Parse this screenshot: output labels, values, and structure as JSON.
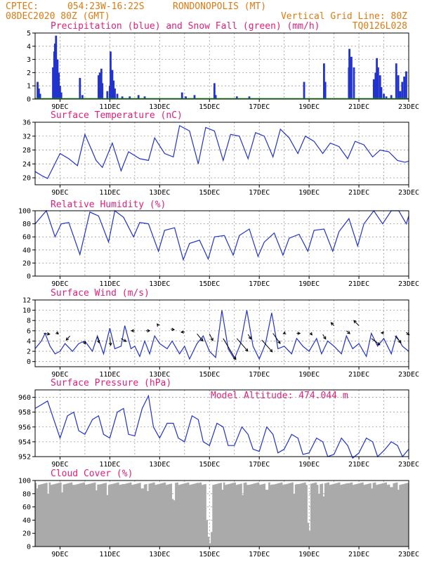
{
  "header": {
    "line1_left": "CPTEC:",
    "line1_coords": "054:23W-16:22S",
    "line1_city": "RONDONOPOLIS (MT)",
    "line2_left": "08DEC2020 80Z (GMT)",
    "line2_right": "Vertical Grid Line: 80Z",
    "line3_right": "TQ0126L028"
  },
  "colors": {
    "header": "#e07a10",
    "title": "#e0207a",
    "line": "#2233cc",
    "precip": "#2233cc",
    "snow": "#22aa22",
    "cloud": "#aaaaaa",
    "arrow": "#000000"
  },
  "x_ticks": [
    "9DEC",
    "11DEC",
    "13DEC",
    "15DEC",
    "17DEC",
    "19DEC",
    "21DEC",
    "23DEC"
  ],
  "model_altitude": "Model Altitude: 474.044 m",
  "chart_data": [
    {
      "type": "bar",
      "title": "Precipitation (blue) and Snow Fall (green) (mm/h)",
      "ylim": [
        0,
        5
      ],
      "yticks": [
        "0",
        "1",
        "2",
        "3",
        "4",
        "5"
      ],
      "x_start_day": 8.0,
      "x_end_day": 23.0,
      "series": [
        {
          "name": "Precipitation",
          "x": [
            8.1,
            8.15,
            8.2,
            8.72,
            8.77,
            8.8,
            8.84,
            8.9,
            8.95,
            9.0,
            9.05,
            9.8,
            9.9,
            10.55,
            10.6,
            10.66,
            10.7,
            10.9,
            11.0,
            11.03,
            11.1,
            11.15,
            11.2,
            11.3,
            11.5,
            11.8,
            12.15,
            12.4,
            13.9,
            14.05,
            14.4,
            15.2,
            15.25,
            16.1,
            16.6,
            18.8,
            19.6,
            19.65,
            20.6,
            20.62,
            20.7,
            20.8,
            21.6,
            21.62,
            21.67,
            21.72,
            21.77,
            21.85,
            21.9,
            22.0,
            22.1,
            22.3,
            22.5,
            22.58,
            22.66,
            22.74,
            22.82,
            22.9
          ],
          "values": [
            1.3,
            0.8,
            0.4,
            2.4,
            3.6,
            4.2,
            4.8,
            3.0,
            2.0,
            1.0,
            0.5,
            1.6,
            0.3,
            1.8,
            2.0,
            2.3,
            1.2,
            0.6,
            1.0,
            3.6,
            2.2,
            1.4,
            0.8,
            0.4,
            0.2,
            0.2,
            0.3,
            0.2,
            0.5,
            0.2,
            0.3,
            1.2,
            0.3,
            0.2,
            0.2,
            1.3,
            2.7,
            1.3,
            2.4,
            3.8,
            3.2,
            2.4,
            1.5,
            1.0,
            2.0,
            3.1,
            2.4,
            1.8,
            0.9,
            0.4,
            0.2,
            0.3,
            2.7,
            1.8,
            0.6,
            1.3,
            1.7,
            2.1
          ]
        },
        {
          "name": "Snow Fall",
          "values_constant": 0
        }
      ]
    },
    {
      "type": "line",
      "title": "Surface Temperature (nC)",
      "ylim": [
        18,
        36
      ],
      "yticks": [
        "20",
        "24",
        "28",
        "32",
        "36"
      ],
      "x_start_day": 8.0,
      "x_end_day": 23.0,
      "x": [
        8.0,
        8.3,
        8.5,
        9.0,
        9.35,
        9.7,
        10.0,
        10.45,
        10.7,
        11.1,
        11.45,
        11.75,
        12.2,
        12.55,
        12.8,
        13.2,
        13.55,
        13.8,
        14.2,
        14.55,
        14.85,
        15.2,
        15.55,
        15.85,
        16.2,
        16.55,
        16.85,
        17.2,
        17.55,
        17.85,
        18.2,
        18.55,
        18.85,
        19.2,
        19.55,
        19.85,
        20.2,
        20.55,
        20.85,
        21.2,
        21.55,
        21.85,
        22.2,
        22.55,
        22.85,
        23.0
      ],
      "values": [
        21.8,
        20.5,
        19.8,
        27.0,
        25.5,
        23.5,
        32.5,
        25.0,
        23.0,
        30.0,
        22.0,
        27.5,
        25.5,
        25.0,
        31.5,
        27.0,
        26.0,
        35.0,
        33.5,
        24.0,
        34.5,
        33.5,
        25.0,
        32.5,
        32.0,
        25.5,
        33.0,
        32.0,
        26.0,
        34.0,
        31.5,
        27.0,
        32.0,
        30.5,
        27.0,
        30.0,
        29.0,
        25.5,
        30.5,
        29.5,
        26.0,
        28.0,
        27.5,
        25.0,
        24.5,
        24.8
      ]
    },
    {
      "type": "line",
      "title": "Relative Humidity (%)",
      "ylim": [
        0,
        100
      ],
      "yticks": [
        "0",
        "20",
        "40",
        "60",
        "80",
        "100"
      ],
      "x_start_day": 8.0,
      "x_end_day": 23.0,
      "x": [
        8.0,
        8.45,
        8.8,
        9.05,
        9.35,
        9.8,
        10.2,
        10.55,
        10.95,
        11.2,
        11.55,
        11.95,
        12.2,
        12.55,
        12.95,
        13.2,
        13.6,
        13.95,
        14.2,
        14.6,
        14.95,
        15.2,
        15.6,
        15.95,
        16.2,
        16.6,
        16.95,
        17.2,
        17.6,
        17.95,
        18.2,
        18.6,
        18.95,
        19.2,
        19.6,
        19.95,
        20.2,
        20.6,
        20.95,
        21.2,
        21.6,
        21.95,
        22.3,
        22.6,
        22.9,
        23.0
      ],
      "values": [
        80,
        100,
        60,
        80,
        82,
        33,
        98,
        92,
        52,
        100,
        90,
        60,
        82,
        80,
        38,
        70,
        74,
        25,
        50,
        55,
        26,
        60,
        62,
        32,
        62,
        72,
        30,
        52,
        66,
        32,
        58,
        64,
        38,
        70,
        72,
        38,
        68,
        88,
        46,
        80,
        100,
        80,
        100,
        100,
        80,
        92
      ]
    },
    {
      "type": "line",
      "title": "Surface Wind (m/s)",
      "ylim": [
        -1,
        12
      ],
      "yticks": [
        "0",
        "2",
        "4",
        "6",
        "8",
        "10",
        "12"
      ],
      "x_start_day": 8.0,
      "x_end_day": 23.0,
      "x": [
        8.0,
        8.25,
        8.4,
        8.6,
        8.8,
        9.0,
        9.2,
        9.5,
        9.75,
        10.0,
        10.3,
        10.5,
        10.75,
        11.0,
        11.2,
        11.45,
        11.6,
        11.85,
        12.0,
        12.2,
        12.4,
        12.6,
        12.8,
        13.0,
        13.3,
        13.5,
        13.8,
        14.0,
        14.2,
        14.5,
        14.75,
        15.0,
        15.25,
        15.5,
        15.75,
        16.0,
        16.25,
        16.5,
        16.75,
        17.0,
        17.25,
        17.5,
        17.75,
        18.0,
        18.3,
        18.5,
        18.75,
        19.0,
        19.3,
        19.5,
        19.75,
        20.0,
        20.3,
        20.5,
        20.75,
        21.0,
        21.3,
        21.5,
        21.75,
        22.0,
        22.3,
        22.5,
        22.75,
        23.0
      ],
      "values": [
        2.5,
        4.0,
        5.5,
        3.0,
        1.5,
        2.0,
        3.5,
        2.0,
        3.5,
        4.0,
        2.0,
        5.0,
        1.5,
        6.5,
        2.5,
        3.0,
        7.0,
        2.5,
        3.0,
        1.0,
        4.0,
        1.5,
        5.0,
        3.5,
        2.5,
        4.0,
        1.5,
        3.0,
        0.5,
        3.5,
        5.0,
        2.0,
        0.8,
        10.0,
        2.5,
        0.5,
        3.5,
        10.0,
        3.0,
        0.5,
        3.5,
        9.5,
        2.5,
        3.0,
        1.5,
        4.5,
        3.0,
        2.0,
        4.5,
        1.5,
        4.0,
        3.0,
        1.5,
        5.0,
        2.5,
        3.5,
        1.0,
        5.5,
        3.0,
        4.5,
        1.5,
        5.0,
        3.0,
        2.0
      ],
      "vectors": [
        {
          "x": 8.35,
          "value": 5.5,
          "u": 0.7,
          "v": -0.1
        },
        {
          "x": 8.85,
          "value": 5.7,
          "u": 0.25,
          "v": -0.2
        },
        {
          "x": 9.4,
          "value": 5.0,
          "u": -0.45,
          "v": -0.5
        },
        {
          "x": 9.95,
          "value": 4.0,
          "u": 0.2,
          "v": -0.35
        },
        {
          "x": 10.5,
          "value": 4.8,
          "u": 0.2,
          "v": -0.7
        },
        {
          "x": 11.0,
          "value": 4.8,
          "u": 0.1,
          "v": -1.0
        },
        {
          "x": 11.45,
          "value": 4.5,
          "u": 0.6,
          "v": -0.35
        },
        {
          "x": 12.0,
          "value": 6.0,
          "u": -0.4,
          "v": 0.0
        },
        {
          "x": 12.45,
          "value": 6.0,
          "u": 0.45,
          "v": 0.0
        },
        {
          "x": 12.95,
          "value": 7.0,
          "u": -0.15,
          "v": 0.2
        },
        {
          "x": 13.45,
          "value": 6.3,
          "u": 0.4,
          "v": -0.05
        },
        {
          "x": 14.0,
          "value": 5.8,
          "u": -0.4,
          "v": -0.05
        },
        {
          "x": 14.5,
          "value": 5.4,
          "u": 0.7,
          "v": -0.85
        },
        {
          "x": 15.0,
          "value": 5.4,
          "u": 0.4,
          "v": -0.8
        },
        {
          "x": 15.55,
          "value": 4.5,
          "u": 1.5,
          "v": -2.5
        },
        {
          "x": 16.1,
          "value": 4.5,
          "u": 1.3,
          "v": -1.5
        },
        {
          "x": 16.55,
          "value": 5.3,
          "u": 0.35,
          "v": -0.55
        },
        {
          "x": 17.1,
          "value": 4.2,
          "u": 1.25,
          "v": -1.4
        },
        {
          "x": 17.55,
          "value": 5.5,
          "u": 0.85,
          "v": -1.2
        },
        {
          "x": 18.05,
          "value": 5.6,
          "u": -0.25,
          "v": -0.1
        },
        {
          "x": 18.5,
          "value": 5.5,
          "u": 0.4,
          "v": 0.0
        },
        {
          "x": 19.05,
          "value": 5.6,
          "u": 0.2,
          "v": -0.25
        },
        {
          "x": 19.55,
          "value": 5.3,
          "u": 0.35,
          "v": -0.55
        },
        {
          "x": 20.0,
          "value": 7.0,
          "u": -0.35,
          "v": 0.35
        },
        {
          "x": 20.5,
          "value": 6.0,
          "u": 0.4,
          "v": -0.35
        },
        {
          "x": 21.0,
          "value": 7.0,
          "u": -0.6,
          "v": 0.6
        },
        {
          "x": 21.5,
          "value": 4.5,
          "u": 1.0,
          "v": -0.75
        },
        {
          "x": 22.0,
          "value": 5.6,
          "u": -0.3,
          "v": 0.0
        },
        {
          "x": 22.45,
          "value": 5.0,
          "u": 0.7,
          "v": -0.8
        },
        {
          "x": 22.9,
          "value": 5.7,
          "u": 0.35,
          "v": -0.3
        }
      ]
    },
    {
      "type": "line",
      "title": "Surface Pressure (hPa)",
      "ylim": [
        952,
        961
      ],
      "yticks": [
        "952",
        "954",
        "956",
        "958",
        "960"
      ],
      "x_start_day": 8.0,
      "x_end_day": 23.0,
      "x": [
        8.0,
        8.25,
        8.5,
        8.75,
        9.0,
        9.3,
        9.55,
        9.75,
        10.0,
        10.3,
        10.55,
        10.75,
        11.0,
        11.3,
        11.55,
        11.75,
        12.0,
        12.3,
        12.55,
        12.75,
        13.0,
        13.3,
        13.55,
        13.75,
        14.0,
        14.3,
        14.55,
        14.75,
        15.0,
        15.3,
        15.55,
        15.75,
        16.0,
        16.3,
        16.55,
        16.75,
        17.0,
        17.3,
        17.55,
        17.75,
        18.0,
        18.3,
        18.55,
        18.75,
        19.0,
        19.3,
        19.55,
        19.75,
        20.0,
        20.3,
        20.55,
        20.75,
        21.0,
        21.3,
        21.55,
        21.75,
        22.0,
        22.3,
        22.55,
        22.75,
        23.0
      ],
      "values": [
        958.5,
        959.0,
        959.5,
        957.0,
        954.5,
        957.5,
        958.0,
        955.5,
        955.0,
        957.0,
        957.5,
        955.0,
        954.5,
        958.0,
        958.5,
        955.0,
        954.8,
        958.5,
        960.2,
        956.0,
        954.5,
        956.5,
        956.5,
        954.5,
        954.0,
        957.5,
        957.0,
        954.0,
        953.5,
        956.5,
        956.0,
        953.5,
        953.5,
        956.0,
        955.0,
        953.0,
        952.7,
        956.0,
        955.0,
        952.5,
        953.0,
        955.0,
        954.5,
        952.3,
        952.5,
        954.5,
        954.0,
        952.0,
        952.3,
        954.5,
        953.5,
        951.8,
        952.5,
        954.5,
        954.0,
        952.0,
        952.8,
        954.0,
        953.5,
        952.0,
        953.0
      ]
    },
    {
      "type": "bar",
      "title": "Cloud Cover (%)",
      "ylim": [
        0,
        100
      ],
      "yticks": [
        "0",
        "20",
        "40",
        "60",
        "80",
        "100"
      ],
      "x_start_day": 8.0,
      "x_end_day": 23.0,
      "base_value": 97,
      "dips": [
        {
          "x": 8.1,
          "value": 88
        },
        {
          "x": 8.5,
          "value": 80
        },
        {
          "x": 9.1,
          "value": 82
        },
        {
          "x": 10.45,
          "value": 85
        },
        {
          "x": 10.9,
          "value": 78
        },
        {
          "x": 12.3,
          "value": 88
        },
        {
          "x": 12.5,
          "value": 84
        },
        {
          "x": 13.5,
          "value": 72
        },
        {
          "x": 13.6,
          "value": 70
        },
        {
          "x": 14.9,
          "value": 40
        },
        {
          "x": 14.95,
          "value": 15
        },
        {
          "x": 15.0,
          "value": 5
        },
        {
          "x": 15.05,
          "value": 22
        },
        {
          "x": 15.5,
          "value": 86
        },
        {
          "x": 16.35,
          "value": 78
        },
        {
          "x": 17.3,
          "value": 86
        },
        {
          "x": 18.4,
          "value": 80
        },
        {
          "x": 18.95,
          "value": 36
        },
        {
          "x": 19.0,
          "value": 24
        },
        {
          "x": 19.4,
          "value": 80
        },
        {
          "x": 19.6,
          "value": 76
        },
        {
          "x": 21.5,
          "value": 88
        },
        {
          "x": 22.3,
          "value": 90
        },
        {
          "x": 22.6,
          "value": 86
        }
      ]
    }
  ]
}
